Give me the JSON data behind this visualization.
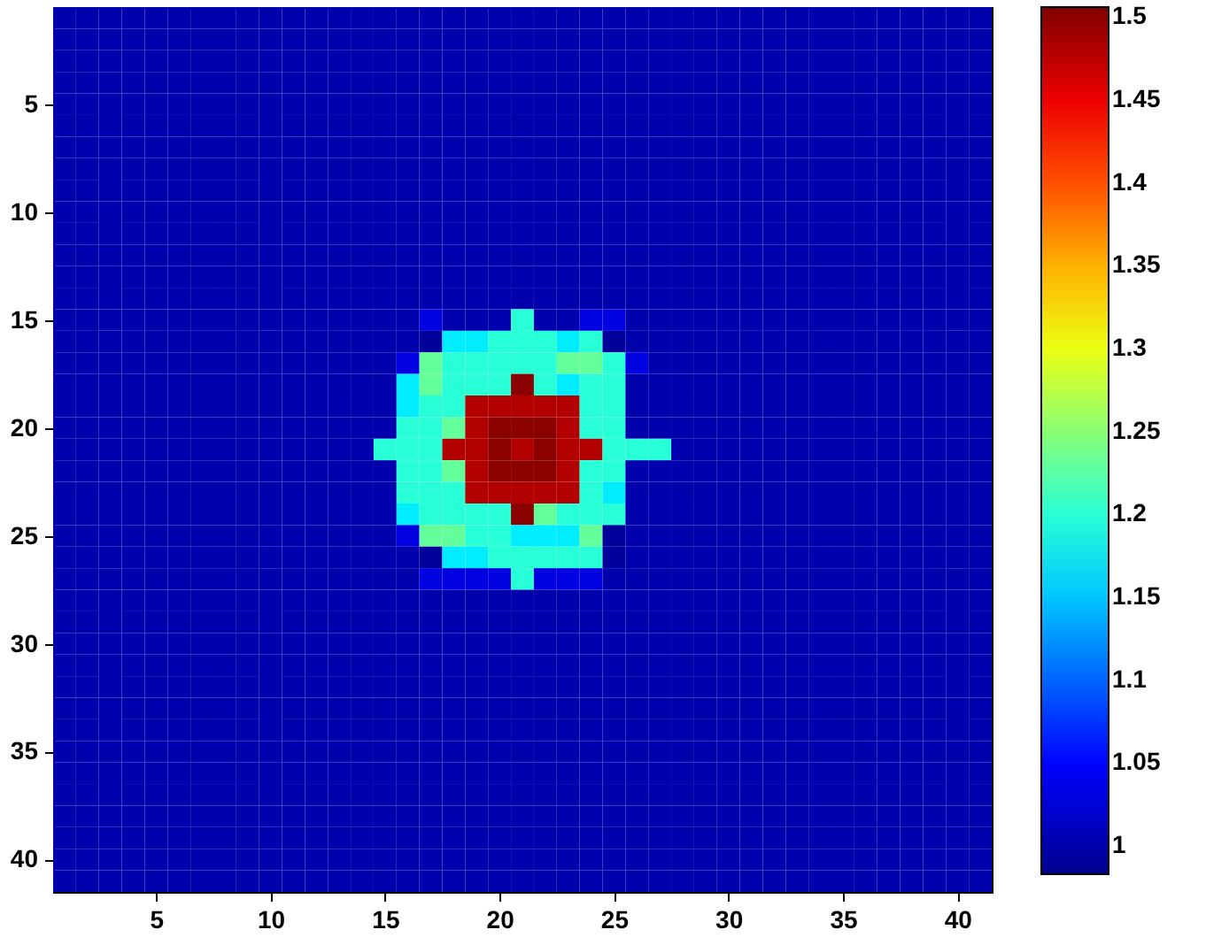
{
  "chart_data": {
    "type": "heatmap",
    "x": [
      1,
      2,
      3,
      4,
      5,
      6,
      7,
      8,
      9,
      10,
      11,
      12,
      13,
      14,
      15,
      16,
      17,
      18,
      19,
      20,
      21,
      22,
      23,
      24,
      25,
      26,
      27,
      28,
      29,
      30,
      31,
      32,
      33,
      34,
      35,
      36,
      37,
      38,
      39,
      40,
      41
    ],
    "y": [
      1,
      2,
      3,
      4,
      5,
      6,
      7,
      8,
      9,
      10,
      11,
      12,
      13,
      14,
      15,
      16,
      17,
      18,
      19,
      20,
      21,
      22,
      23,
      24,
      25,
      26,
      27,
      28,
      29,
      30,
      31,
      32,
      33,
      34,
      35,
      36,
      37,
      38,
      39,
      40,
      41
    ],
    "xlim": [
      0.5,
      41.5
    ],
    "xticks": [
      5,
      10,
      15,
      20,
      25,
      30,
      35,
      40
    ],
    "ylim": [
      41.5,
      0.5
    ],
    "yticks": [
      5,
      10,
      15,
      20,
      25,
      30,
      35,
      40
    ],
    "clim": [
      0.983,
      1.506
    ],
    "cticks": [
      1,
      1.05,
      1.1,
      1.15,
      1.2,
      1.25,
      1.3,
      1.35,
      1.4,
      1.45,
      1.5
    ],
    "grid": false,
    "cells": [
      [
        1,
        1,
        1,
        1,
        1,
        1,
        1,
        1,
        1,
        1,
        1,
        1,
        1,
        1,
        1,
        1,
        1,
        1,
        1,
        1,
        1,
        1,
        1,
        1,
        1,
        1,
        1,
        1,
        1,
        1,
        1,
        1,
        1,
        1,
        1,
        1,
        1,
        1,
        1,
        1,
        1
      ],
      [
        1,
        1,
        1,
        1,
        1,
        1,
        1,
        1,
        1,
        1,
        1,
        1,
        1,
        1,
        1,
        1,
        1,
        1,
        1,
        1,
        1,
        1,
        1,
        1,
        1,
        1,
        1,
        1,
        1,
        1,
        1,
        1,
        1,
        1,
        1,
        1,
        1,
        1,
        1,
        1,
        1
      ],
      [
        1,
        1,
        1,
        1,
        1,
        1,
        1,
        1,
        1,
        1,
        1,
        1,
        1,
        1,
        1,
        1,
        1,
        1,
        1,
        1,
        1,
        1,
        1,
        1,
        1,
        1,
        1,
        1,
        1,
        1,
        1,
        1,
        1,
        1,
        1,
        1,
        1,
        1,
        1,
        1,
        1
      ],
      [
        1,
        1,
        1,
        1,
        1,
        1,
        1,
        1,
        1,
        1,
        1,
        1,
        1,
        1,
        1,
        1,
        1,
        1,
        1,
        1,
        1,
        1,
        1,
        1,
        1,
        1,
        1,
        1,
        1,
        1,
        1,
        1,
        1,
        1,
        1,
        1,
        1,
        1,
        1,
        1,
        1
      ],
      [
        1,
        1,
        1,
        1,
        1,
        1,
        1,
        1,
        1,
        1,
        1,
        1,
        1,
        1,
        1,
        1,
        1,
        1,
        1,
        1,
        1,
        1,
        1,
        1,
        1,
        1,
        1,
        1,
        1,
        1,
        1,
        1,
        1,
        1,
        1,
        1,
        1,
        1,
        1,
        1,
        1
      ],
      [
        1,
        1,
        1,
        1,
        1,
        1,
        1,
        1,
        1,
        1,
        1,
        1,
        1,
        1,
        1,
        1,
        1,
        1,
        1,
        1,
        1,
        1,
        1,
        1,
        1,
        1,
        1,
        1,
        1,
        1,
        1,
        1,
        1,
        1,
        1,
        1,
        1,
        1,
        1,
        1,
        1
      ],
      [
        1,
        1,
        1,
        1,
        1,
        1,
        1,
        1,
        1,
        1,
        1,
        1,
        1,
        1,
        1,
        1,
        1,
        1,
        1,
        1,
        1,
        1,
        1,
        1,
        1,
        1,
        1,
        1,
        1,
        1,
        1,
        1,
        1,
        1,
        1,
        1,
        1,
        1,
        1,
        1,
        1
      ],
      [
        1,
        1,
        1,
        1,
        1,
        1,
        1,
        1,
        1,
        1,
        1,
        1,
        1,
        1,
        1,
        1,
        1,
        1,
        1,
        1,
        1,
        1,
        1,
        1,
        1,
        1,
        1,
        1,
        1,
        1,
        1,
        1,
        1,
        1,
        1,
        1,
        1,
        1,
        1,
        1,
        1
      ],
      [
        1,
        1,
        1,
        1,
        1,
        1,
        1,
        1,
        1,
        1,
        1,
        1,
        1,
        1,
        1,
        1,
        1,
        1,
        1,
        1,
        1,
        1,
        1,
        1,
        1,
        1,
        1,
        1,
        1,
        1,
        1,
        1,
        1,
        1,
        1,
        1,
        1,
        1,
        1,
        1,
        1
      ],
      [
        1,
        1,
        1,
        1,
        1,
        1,
        1,
        1,
        1,
        1,
        1,
        1,
        1,
        1,
        1,
        1,
        1,
        1,
        1,
        1,
        1,
        1,
        1,
        1,
        1,
        1,
        1,
        1,
        1,
        1,
        1,
        1,
        1,
        1,
        1,
        1,
        1,
        1,
        1,
        1,
        1
      ],
      [
        1,
        1,
        1,
        1,
        1,
        1,
        1,
        1,
        1,
        1,
        1,
        1,
        1,
        1,
        1,
        1,
        1,
        1,
        1,
        1,
        1,
        1,
        1,
        1,
        1,
        1,
        1,
        1,
        1,
        1,
        1,
        1,
        1,
        1,
        1,
        1,
        1,
        1,
        1,
        1,
        1
      ],
      [
        1,
        1,
        1,
        1,
        1,
        1,
        1,
        1,
        1,
        1,
        1,
        1,
        1,
        1,
        1,
        1,
        1,
        1,
        1,
        1,
        1,
        1,
        1,
        1,
        1,
        1,
        1,
        1,
        1,
        1,
        1,
        1,
        1,
        1,
        1,
        1,
        1,
        1,
        1,
        1,
        1
      ],
      [
        1,
        1,
        1,
        1,
        1,
        1,
        1,
        1,
        1,
        1,
        1,
        1,
        1,
        1,
        1,
        1,
        1,
        1,
        1,
        1,
        1,
        1,
        1,
        1,
        1,
        1,
        1,
        1,
        1,
        1,
        1,
        1,
        1,
        1,
        1,
        1,
        1,
        1,
        1,
        1,
        1
      ],
      [
        1,
        1,
        1,
        1,
        1,
        1,
        1,
        1,
        1,
        1,
        1,
        1,
        1,
        1,
        1,
        1,
        1,
        1,
        1,
        1,
        1,
        1,
        1,
        1,
        1,
        1,
        1,
        1,
        1,
        1,
        1,
        1,
        1,
        1,
        1,
        1,
        1,
        1,
        1,
        1,
        1
      ],
      [
        1,
        1,
        1,
        1,
        1,
        1,
        1,
        1,
        1,
        1,
        1,
        1,
        1,
        1,
        1,
        1,
        1.03,
        1,
        1,
        1,
        1.2,
        1,
        1,
        1.03,
        1.03,
        1,
        1,
        1,
        1,
        1,
        1,
        1,
        1,
        1,
        1,
        1,
        1,
        1,
        1,
        1,
        1
      ],
      [
        1,
        1,
        1,
        1,
        1,
        1,
        1,
        1,
        1,
        1,
        1,
        1,
        1,
        1,
        1,
        1,
        0.99,
        1.17,
        1.17,
        1.2,
        1.2,
        1.2,
        1.17,
        1.2,
        0.99,
        1,
        1,
        1,
        1,
        1,
        1,
        1,
        1,
        1,
        1,
        1,
        1,
        1,
        1,
        1,
        1
      ],
      [
        1,
        1,
        1,
        1,
        1,
        1,
        1,
        1,
        1,
        1,
        1,
        1,
        1,
        1,
        1,
        1.03,
        1.23,
        1.2,
        1.2,
        1.2,
        1.2,
        1.2,
        1.23,
        1.23,
        1.2,
        1.03,
        1,
        1,
        1,
        1,
        1,
        1,
        1,
        1,
        1,
        1,
        1,
        1,
        1,
        1,
        1
      ],
      [
        1,
        1,
        1,
        1,
        1,
        1,
        1,
        1,
        1,
        1,
        1,
        1,
        1,
        1,
        1,
        1.17,
        1.23,
        1.2,
        1.2,
        1.2,
        1.5,
        1.2,
        1.17,
        1.2,
        1.2,
        1,
        1,
        1,
        1,
        1,
        1,
        1,
        1,
        1,
        1,
        1,
        1,
        1,
        1,
        1,
        1
      ],
      [
        1,
        1,
        1,
        1,
        1,
        1,
        1,
        1,
        1,
        1,
        1,
        1,
        1,
        1,
        1,
        1.17,
        1.2,
        1.2,
        1.48,
        1.48,
        1.48,
        1.48,
        1.48,
        1.2,
        1.2,
        1,
        1,
        1,
        1,
        1,
        1,
        1,
        1,
        1,
        1,
        1,
        1,
        1,
        1,
        1,
        1
      ],
      [
        1,
        1,
        1,
        1,
        1,
        1,
        1,
        1,
        1,
        1,
        1,
        1,
        1,
        1,
        1,
        1.2,
        1.2,
        1.23,
        1.48,
        1.5,
        1.5,
        1.5,
        1.48,
        1.2,
        1.2,
        1,
        1,
        1,
        1,
        1,
        1,
        1,
        1,
        1,
        1,
        1,
        1,
        1,
        1,
        1,
        1
      ],
      [
        1,
        1,
        1,
        1,
        1,
        1,
        1,
        1,
        1,
        1,
        1,
        1,
        1,
        1,
        1.2,
        1.2,
        1.2,
        1.48,
        1.48,
        1.5,
        1.48,
        1.5,
        1.48,
        1.48,
        1.2,
        1.2,
        1.2,
        1,
        1,
        1,
        1,
        1,
        1,
        1,
        1,
        1,
        1,
        1,
        1,
        1,
        1
      ],
      [
        1,
        1,
        1,
        1,
        1,
        1,
        1,
        1,
        1,
        1,
        1,
        1,
        1,
        1,
        1,
        1.2,
        1.2,
        1.23,
        1.48,
        1.5,
        1.5,
        1.5,
        1.48,
        1.2,
        1.2,
        1,
        1,
        1,
        1,
        1,
        1,
        1,
        1,
        1,
        1,
        1,
        1,
        1,
        1,
        1,
        1
      ],
      [
        1,
        1,
        1,
        1,
        1,
        1,
        1,
        1,
        1,
        1,
        1,
        1,
        1,
        1,
        1,
        1.2,
        1.2,
        1.2,
        1.48,
        1.48,
        1.48,
        1.48,
        1.48,
        1.2,
        1.17,
        1,
        1,
        1,
        1,
        1,
        1,
        1,
        1,
        1,
        1,
        1,
        1,
        1,
        1,
        1,
        1
      ],
      [
        1,
        1,
        1,
        1,
        1,
        1,
        1,
        1,
        1,
        1,
        1,
        1,
        1,
        1,
        1,
        1.17,
        1.2,
        1.2,
        1.2,
        1.2,
        1.5,
        1.23,
        1.2,
        1.2,
        1.2,
        1,
        1,
        1,
        1,
        1,
        1,
        1,
        1,
        1,
        1,
        1,
        1,
        1,
        1,
        1,
        1
      ],
      [
        1,
        1,
        1,
        1,
        1,
        1,
        1,
        1,
        1,
        1,
        1,
        1,
        1,
        1,
        1,
        1.03,
        1.23,
        1.23,
        1.2,
        1.2,
        1.17,
        1.17,
        1.17,
        1.23,
        0.99,
        1,
        1,
        1,
        1,
        1,
        1,
        1,
        1,
        1,
        1,
        1,
        1,
        1,
        1,
        1,
        1
      ],
      [
        1,
        1,
        1,
        1,
        1,
        1,
        1,
        1,
        1,
        1,
        1,
        1,
        1,
        1,
        1,
        1,
        0.99,
        1.17,
        1.17,
        1.2,
        1.2,
        1.2,
        1.2,
        1.2,
        0.99,
        1,
        1,
        1,
        1,
        1,
        1,
        1,
        1,
        1,
        1,
        1,
        1,
        1,
        1,
        1,
        1
      ],
      [
        1,
        1,
        1,
        1,
        1,
        1,
        1,
        1,
        1,
        1,
        1,
        1,
        1,
        1,
        1,
        1,
        1.03,
        1.03,
        1.03,
        1.03,
        1.2,
        1.03,
        1.03,
        1.03,
        1,
        1,
        1,
        1,
        1,
        1,
        1,
        1,
        1,
        1,
        1,
        1,
        1,
        1,
        1,
        1,
        1
      ],
      [
        1,
        1,
        1,
        1,
        1,
        1,
        1,
        1,
        1,
        1,
        1,
        1,
        1,
        1,
        1,
        1,
        1,
        1,
        1,
        1,
        1,
        1,
        1,
        1,
        1,
        1,
        1,
        1,
        1,
        1,
        1,
        1,
        1,
        1,
        1,
        1,
        1,
        1,
        1,
        1,
        1
      ],
      [
        1,
        1,
        1,
        1,
        1,
        1,
        1,
        1,
        1,
        1,
        1,
        1,
        1,
        1,
        1,
        1,
        1,
        1,
        1,
        1,
        1,
        1,
        1,
        1,
        1,
        1,
        1,
        1,
        1,
        1,
        1,
        1,
        1,
        1,
        1,
        1,
        1,
        1,
        1,
        1,
        1
      ],
      [
        1,
        1,
        1,
        1,
        1,
        1,
        1,
        1,
        1,
        1,
        1,
        1,
        1,
        1,
        1,
        1,
        1,
        1,
        1,
        1,
        1,
        1,
        1,
        1,
        1,
        1,
        1,
        1,
        1,
        1,
        1,
        1,
        1,
        1,
        1,
        1,
        1,
        1,
        1,
        1,
        1
      ],
      [
        1,
        1,
        1,
        1,
        1,
        1,
        1,
        1,
        1,
        1,
        1,
        1,
        1,
        1,
        1,
        1,
        1,
        1,
        1,
        1,
        1,
        1,
        1,
        1,
        1,
        1,
        1,
        1,
        1,
        1,
        1,
        1,
        1,
        1,
        1,
        1,
        1,
        1,
        1,
        1,
        1
      ],
      [
        1,
        1,
        1,
        1,
        1,
        1,
        1,
        1,
        1,
        1,
        1,
        1,
        1,
        1,
        1,
        1,
        1,
        1,
        1,
        1,
        1,
        1,
        1,
        1,
        1,
        1,
        1,
        1,
        1,
        1,
        1,
        1,
        1,
        1,
        1,
        1,
        1,
        1,
        1,
        1,
        1
      ],
      [
        1,
        1,
        1,
        1,
        1,
        1,
        1,
        1,
        1,
        1,
        1,
        1,
        1,
        1,
        1,
        1,
        1,
        1,
        1,
        1,
        1,
        1,
        1,
        1,
        1,
        1,
        1,
        1,
        1,
        1,
        1,
        1,
        1,
        1,
        1,
        1,
        1,
        1,
        1,
        1,
        1
      ],
      [
        1,
        1,
        1,
        1,
        1,
        1,
        1,
        1,
        1,
        1,
        1,
        1,
        1,
        1,
        1,
        1,
        1,
        1,
        1,
        1,
        1,
        1,
        1,
        1,
        1,
        1,
        1,
        1,
        1,
        1,
        1,
        1,
        1,
        1,
        1,
        1,
        1,
        1,
        1,
        1,
        1
      ],
      [
        1,
        1,
        1,
        1,
        1,
        1,
        1,
        1,
        1,
        1,
        1,
        1,
        1,
        1,
        1,
        1,
        1,
        1,
        1,
        1,
        1,
        1,
        1,
        1,
        1,
        1,
        1,
        1,
        1,
        1,
        1,
        1,
        1,
        1,
        1,
        1,
        1,
        1,
        1,
        1,
        1
      ],
      [
        1,
        1,
        1,
        1,
        1,
        1,
        1,
        1,
        1,
        1,
        1,
        1,
        1,
        1,
        1,
        1,
        1,
        1,
        1,
        1,
        1,
        1,
        1,
        1,
        1,
        1,
        1,
        1,
        1,
        1,
        1,
        1,
        1,
        1,
        1,
        1,
        1,
        1,
        1,
        1,
        1
      ],
      [
        1,
        1,
        1,
        1,
        1,
        1,
        1,
        1,
        1,
        1,
        1,
        1,
        1,
        1,
        1,
        1,
        1,
        1,
        1,
        1,
        1,
        1,
        1,
        1,
        1,
        1,
        1,
        1,
        1,
        1,
        1,
        1,
        1,
        1,
        1,
        1,
        1,
        1,
        1,
        1,
        1
      ],
      [
        1,
        1,
        1,
        1,
        1,
        1,
        1,
        1,
        1,
        1,
        1,
        1,
        1,
        1,
        1,
        1,
        1,
        1,
        1,
        1,
        1,
        1,
        1,
        1,
        1,
        1,
        1,
        1,
        1,
        1,
        1,
        1,
        1,
        1,
        1,
        1,
        1,
        1,
        1,
        1,
        1
      ],
      [
        1,
        1,
        1,
        1,
        1,
        1,
        1,
        1,
        1,
        1,
        1,
        1,
        1,
        1,
        1,
        1,
        1,
        1,
        1,
        1,
        1,
        1,
        1,
        1,
        1,
        1,
        1,
        1,
        1,
        1,
        1,
        1,
        1,
        1,
        1,
        1,
        1,
        1,
        1,
        1,
        1
      ],
      [
        1,
        1,
        1,
        1,
        1,
        1,
        1,
        1,
        1,
        1,
        1,
        1,
        1,
        1,
        1,
        1,
        1,
        1,
        1,
        1,
        1,
        1,
        1,
        1,
        1,
        1,
        1,
        1,
        1,
        1,
        1,
        1,
        1,
        1,
        1,
        1,
        1,
        1,
        1,
        1,
        1
      ],
      [
        1,
        1,
        1,
        1,
        1,
        1,
        1,
        1,
        1,
        1,
        1,
        1,
        1,
        1,
        1,
        1,
        1,
        1,
        1,
        1,
        1,
        1,
        1,
        1,
        1,
        1,
        1,
        1,
        1,
        1,
        1,
        1,
        1,
        1,
        1,
        1,
        1,
        1,
        1,
        1,
        1
      ]
    ]
  }
}
